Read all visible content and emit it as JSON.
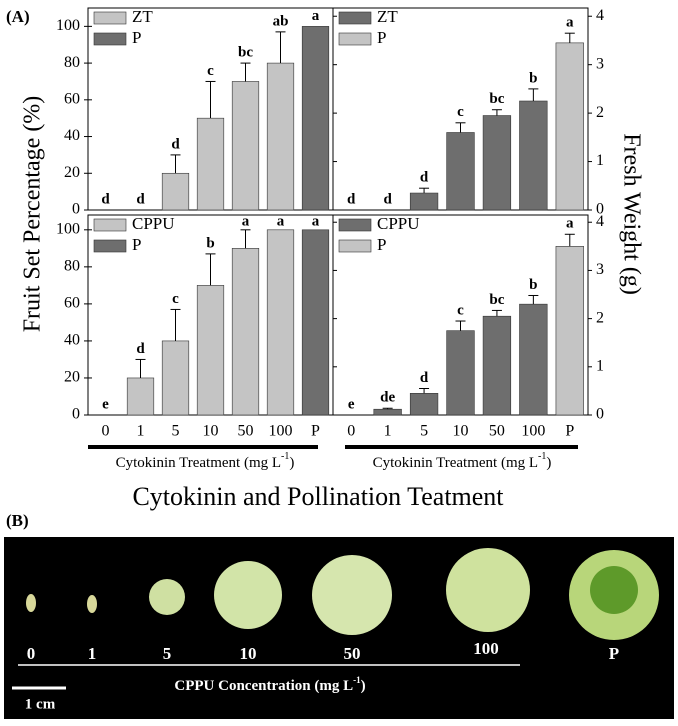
{
  "panel_a": {
    "label": "(A)",
    "y_label_left": "Fruit Set Percentage (%)",
    "y_label_right": "Fresh Weight (g)",
    "x_label_left": {
      "text": "Cytokinin Treatment (mg L",
      "sup": "-1",
      "end": ")"
    },
    "x_label_right": {
      "text": "Cytokinin Treatment (mg L",
      "sup": "-1",
      "end": ")"
    },
    "x_label_main": "Cytokinin and Pollination Teatment"
  },
  "chart_data": [
    {
      "type": "bar",
      "legend": "upper left",
      "tick_side": "left",
      "ylim": [
        0,
        110
      ],
      "yticks": [
        0,
        20,
        40,
        60,
        80,
        100
      ],
      "series": [
        {
          "name": "ZT",
          "color": "#c4c4c4",
          "values": [
            0,
            0,
            20,
            50,
            70,
            80,
            null
          ],
          "errors": [
            0,
            0,
            10,
            20,
            10,
            17,
            null
          ]
        },
        {
          "name": "P",
          "color": "#6e6e6e",
          "values": [
            null,
            null,
            null,
            null,
            null,
            null,
            100
          ],
          "errors": [
            null,
            null,
            null,
            null,
            null,
            null,
            0
          ]
        }
      ],
      "letters": [
        "d",
        "d",
        "d",
        "c",
        "bc",
        "ab",
        "a"
      ]
    },
    {
      "type": "bar",
      "legend": "upper left",
      "tick_side": "right",
      "ylim": [
        0,
        4.17
      ],
      "yticks": [
        0,
        1,
        2,
        3,
        4
      ],
      "series": [
        {
          "name": "ZT",
          "color": "#6e6e6e",
          "values": [
            0,
            0,
            0.35,
            1.6,
            1.95,
            2.25,
            null
          ],
          "errors": [
            0,
            0,
            0.1,
            0.2,
            0.12,
            0.25,
            null
          ]
        },
        {
          "name": "P",
          "color": "#c4c4c4",
          "values": [
            null,
            null,
            null,
            null,
            null,
            null,
            3.45
          ],
          "errors": [
            null,
            null,
            null,
            null,
            null,
            null,
            0.2
          ]
        }
      ],
      "letters": [
        "d",
        "d",
        "d",
        "c",
        "bc",
        "b",
        "a"
      ]
    },
    {
      "type": "bar",
      "legend": "upper left",
      "tick_side": "left",
      "ylim": [
        0,
        108
      ],
      "yticks": [
        0,
        20,
        40,
        60,
        80,
        100
      ],
      "categories": [
        "0",
        "1",
        "5",
        "10",
        "50",
        "100",
        "P"
      ],
      "series": [
        {
          "name": "CPPU",
          "color": "#c4c4c4",
          "values": [
            0,
            20,
            40,
            70,
            90,
            100,
            null
          ],
          "errors": [
            0,
            10,
            17,
            17,
            10,
            0,
            null
          ]
        },
        {
          "name": "P",
          "color": "#6e6e6e",
          "values": [
            null,
            null,
            null,
            null,
            null,
            null,
            100
          ],
          "errors": [
            null,
            null,
            null,
            null,
            null,
            null,
            0
          ]
        }
      ],
      "letters": [
        "e",
        "d",
        "c",
        "b",
        "a",
        "a",
        "a"
      ]
    },
    {
      "type": "bar",
      "legend": "upper left",
      "tick_side": "right",
      "ylim": [
        0,
        4.15
      ],
      "yticks": [
        0,
        1,
        2,
        3,
        4
      ],
      "categories": [
        "0",
        "1",
        "5",
        "10",
        "50",
        "100",
        "P"
      ],
      "series": [
        {
          "name": "CPPU",
          "color": "#6e6e6e",
          "values": [
            0,
            0.12,
            0.45,
            1.75,
            2.05,
            2.3,
            null
          ],
          "errors": [
            0,
            0.02,
            0.1,
            0.2,
            0.12,
            0.18,
            null
          ]
        },
        {
          "name": "P",
          "color": "#c4c4c4",
          "values": [
            null,
            null,
            null,
            null,
            null,
            null,
            3.5
          ],
          "errors": [
            null,
            null,
            null,
            null,
            null,
            null,
            0.25
          ]
        }
      ],
      "letters": [
        "e",
        "de",
        "d",
        "c",
        "bc",
        "b",
        "a"
      ]
    }
  ],
  "panel_b": {
    "label": "(B)",
    "samples": [
      "0",
      "1",
      "5",
      "10",
      "50",
      "100",
      "P"
    ],
    "x_label": {
      "text": "CPPU Concentration (mg L",
      "sup": "-1",
      "end": ")"
    },
    "scale": "1 cm"
  }
}
